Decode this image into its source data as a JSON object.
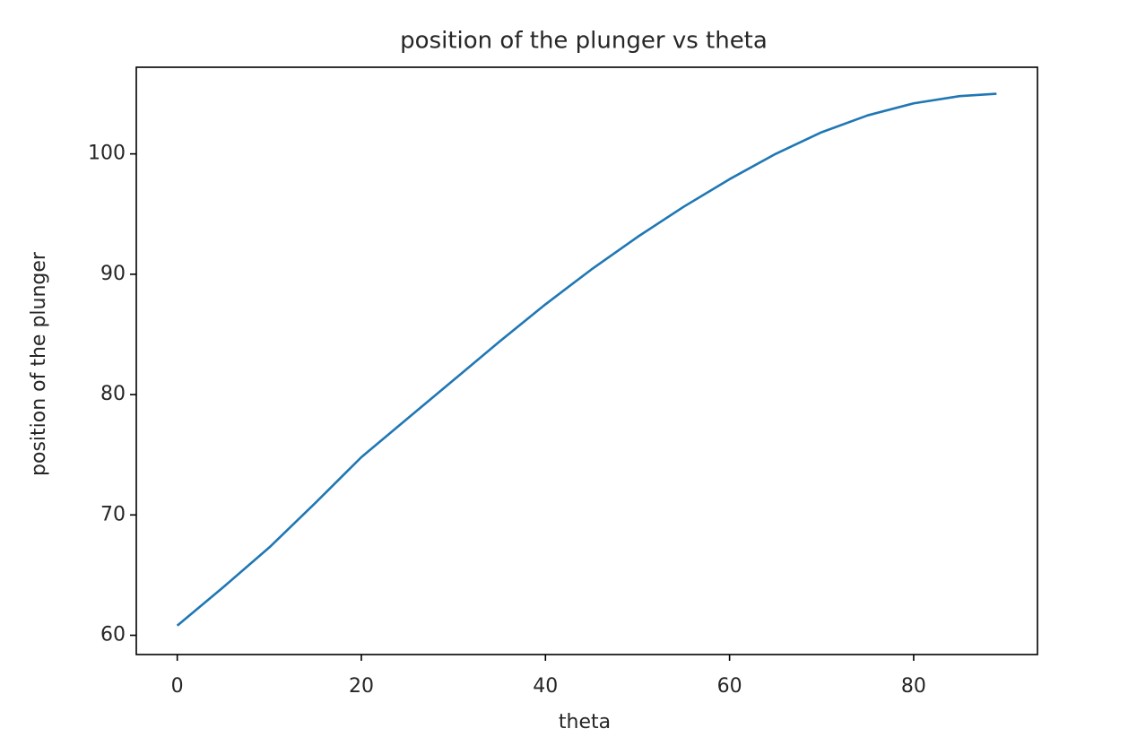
{
  "chart_data": {
    "type": "line",
    "title": "position of the plunger vs theta",
    "xlabel": "theta",
    "ylabel": "position of the plunger",
    "x": [
      0,
      5,
      10,
      15,
      20,
      25,
      30,
      35,
      40,
      45,
      50,
      55,
      60,
      65,
      70,
      75,
      80,
      85,
      89
    ],
    "values": [
      60.8,
      64.0,
      67.3,
      71.0,
      74.8,
      78.0,
      81.2,
      84.4,
      87.5,
      90.4,
      93.1,
      95.6,
      97.9,
      100.0,
      101.8,
      103.2,
      104.2,
      104.8,
      105.0
    ],
    "color": "#1f77b4",
    "xlim": [
      -4.45,
      93.45
    ],
    "xticks": [
      0,
      20,
      40,
      60,
      80
    ],
    "ylim": [
      58.4,
      107.2
    ],
    "yticks": [
      60,
      70,
      80,
      90,
      100
    ]
  }
}
